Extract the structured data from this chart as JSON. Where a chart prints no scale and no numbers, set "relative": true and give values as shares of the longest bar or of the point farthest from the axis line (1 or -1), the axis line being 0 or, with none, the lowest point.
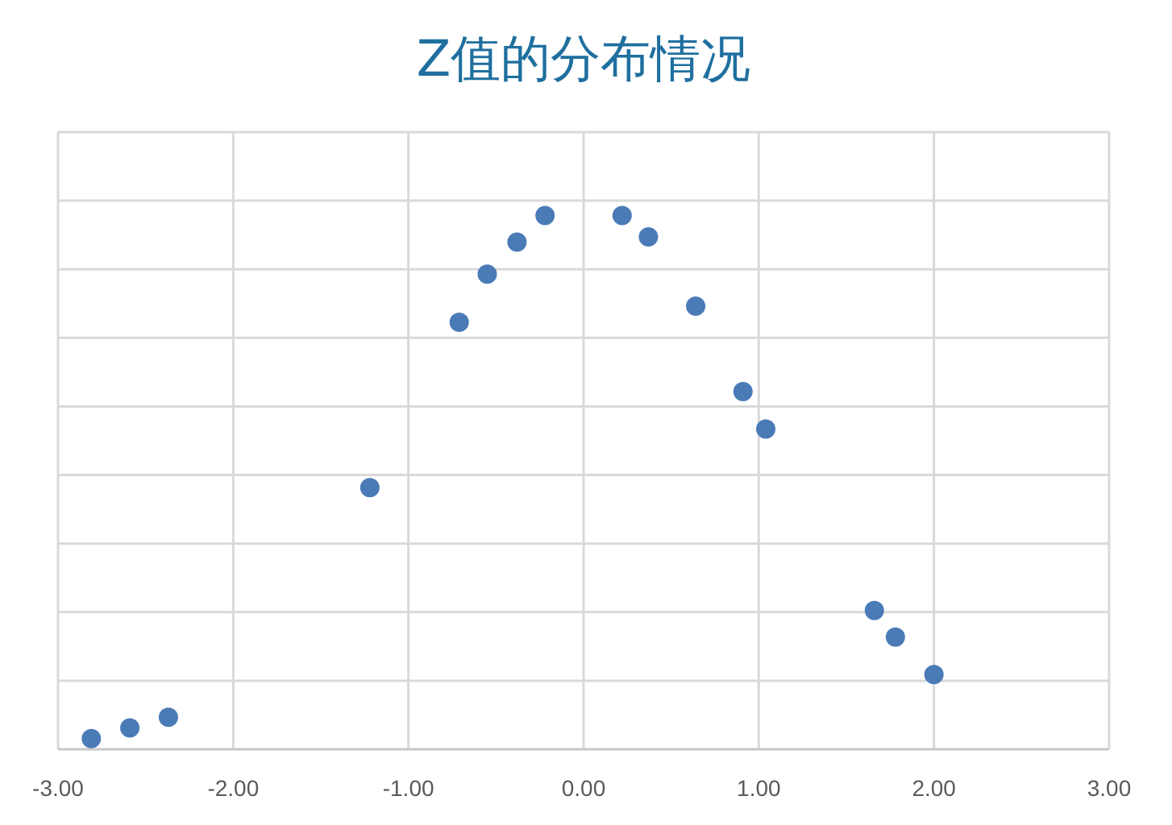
{
  "chart_data": {
    "type": "scatter",
    "title": "Z值的分布情况",
    "relative": true,
    "tick_labels": "x",
    "grid": true,
    "marker": "circle",
    "xlim": [
      -3,
      3
    ],
    "xticks": [
      {
        "value": -3,
        "label": "-3.00"
      },
      {
        "value": -2,
        "label": "-2.00"
      },
      {
        "value": -1,
        "label": "-1.00"
      },
      {
        "value": 0,
        "label": "0.00"
      },
      {
        "value": 1,
        "label": "1.00"
      },
      {
        "value": 2,
        "label": "2.00"
      },
      {
        "value": 3,
        "label": "3.00"
      }
    ],
    "color": "#4a7bb7",
    "x": [
      -2.81,
      -2.59,
      -2.37,
      -1.22,
      -0.71,
      -0.55,
      -0.38,
      -0.22,
      0.22,
      0.37,
      0.64,
      0.91,
      1.04,
      1.66,
      1.78,
      2.0
    ],
    "values": [
      0.02,
      0.04,
      0.06,
      0.49,
      0.8,
      0.89,
      0.95,
      1.0,
      1.0,
      0.96,
      0.83,
      0.67,
      0.6,
      0.26,
      0.21,
      0.14
    ]
  }
}
